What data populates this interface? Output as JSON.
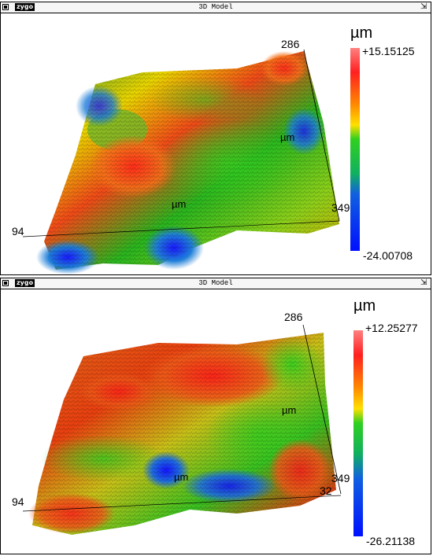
{
  "windows": [
    {
      "title": "3D Model",
      "logo": "zygo",
      "colorbar": {
        "unit": "µm",
        "max": "+15.15125",
        "min": "-24.00708"
      },
      "axis_labels": {
        "back_corner": "286",
        "right_corner": "349",
        "left_corner": "94",
        "surface_unit_a": "µm",
        "surface_unit_b": "µm"
      }
    },
    {
      "title": "3D Model",
      "logo": "zygo",
      "colorbar": {
        "unit": "µm",
        "max": "+12.25277",
        "min": "-26.21138"
      },
      "axis_labels": {
        "back_corner": "286",
        "right_corner": "349",
        "left_corner": "94",
        "extra_tick": "32",
        "surface_unit_a": "µm",
        "surface_unit_b": "µm"
      }
    }
  ],
  "colors": {
    "high": "#ff4040",
    "mid": "#22c022",
    "low": "#1010ff",
    "yellow": "#ffe000"
  },
  "icons": {
    "window_menu": "window-menu-icon",
    "resize": "resize-icon"
  }
}
